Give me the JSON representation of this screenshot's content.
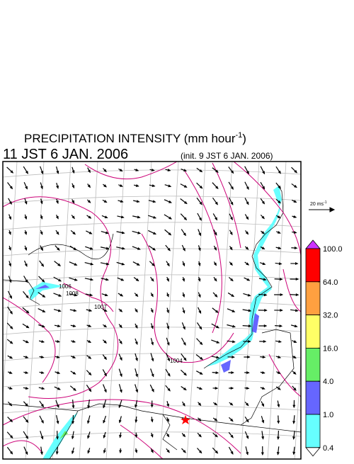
{
  "title": {
    "main": "PRECIPITATION INTENSITY (mm hour",
    "sup": "-1",
    "close": ")"
  },
  "valid_time": "11 JST 6 JAN. 2006",
  "init_time": "(init. 9 JST 6 JAN. 2006)",
  "vector_legend": {
    "label": "20 ms",
    "sup": "-1"
  },
  "colorbar": {
    "ticks": [
      {
        "value": 100,
        "label": "100.0"
      },
      {
        "value": 64,
        "label": "64.0"
      },
      {
        "value": 32,
        "label": "32.0"
      },
      {
        "value": 16,
        "label": "16.0"
      },
      {
        "value": 4,
        "label": "4.0"
      },
      {
        "value": 1,
        "label": "1.0"
      },
      {
        "value": 0.4,
        "label": "0.4"
      }
    ],
    "colors": [
      "#ff0000",
      "#ffa040",
      "#ffff66",
      "#66ee66",
      "#6666ff",
      "#66ffff"
    ],
    "over_color": "#cc33ff",
    "under_color": "#ffffff"
  },
  "contour_labels": [
    "1006",
    "1008",
    "1007",
    "1004"
  ]
}
